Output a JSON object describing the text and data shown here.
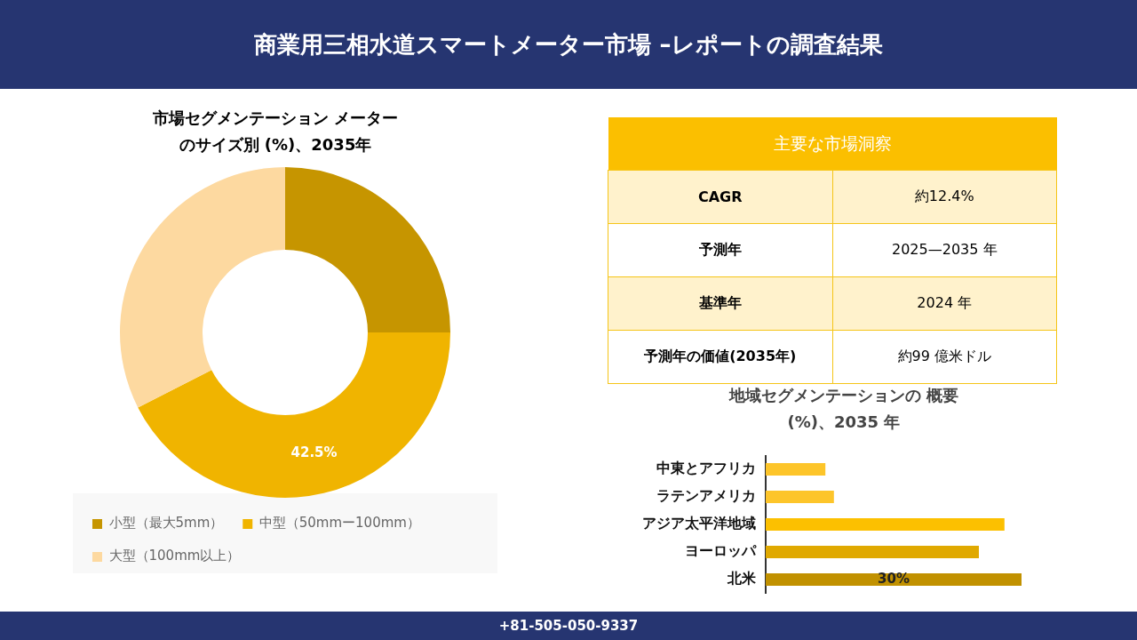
{
  "chart_data": [
    {
      "type": "other",
      "title": "商業用三相水道スマートメーター市場 –レポートの調査結果",
      "annotations": [
        "+81-505-050-9337"
      ]
    },
    {
      "type": "donut",
      "title": "市場セグメンテーション メーターのサイズ別 (%)、2035年",
      "categories": [
        "小型（最大5mm）",
        "中型（50mmー100mm）",
        "大型（100mm以上）"
      ],
      "values": [
        25,
        42.5,
        32.5
      ],
      "colors": [
        "#c69500",
        "#f0b400",
        "#fdd9a0"
      ],
      "value_labels": [
        null,
        "42.5%",
        null
      ],
      "legend": "bottom"
    },
    {
      "type": "other",
      "title": "主要な市場洞察",
      "categories": [
        "CAGR",
        "予測年",
        "基準年",
        "予測年の価値(2035年)"
      ],
      "annotations": [
        "約12.4%",
        "2025—2035 年",
        "2024 年",
        "約99 億米ドル"
      ]
    },
    {
      "type": "bar",
      "orientation": "horizontal",
      "tick_labels": "y",
      "title": "地域セグメンテーションの 概要 (%)、2035 年",
      "categories": [
        "中東とアフリカ",
        "ラテンアメリカ",
        "アジア太平洋地域",
        "ヨーロッパ",
        "北米"
      ],
      "values": [
        7,
        8,
        28,
        25,
        30
      ],
      "colors": [
        "#fdc52a",
        "#fdc52a",
        "#fcc000",
        "#e0a900",
        "#c19100"
      ],
      "value_labels": [
        null,
        null,
        null,
        null,
        "30%"
      ]
    }
  ]
}
